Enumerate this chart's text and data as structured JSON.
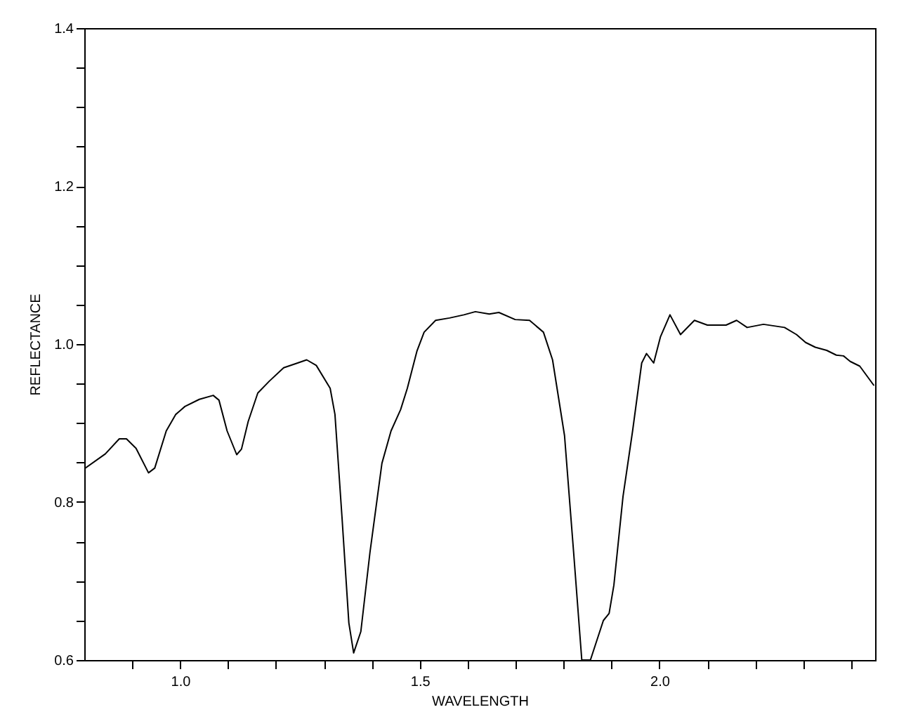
{
  "chart_data": {
    "type": "line",
    "xlabel": "WAVELENGTH",
    "ylabel": "REFLECTANCE",
    "xlim": [
      0.8,
      2.45
    ],
    "ylim": [
      0.6,
      1.4
    ],
    "xticks": [
      {
        "value": 0.9,
        "label": null
      },
      {
        "value": 1,
        "label": "1.0"
      },
      {
        "value": 1.1,
        "label": null
      },
      {
        "value": 1.2,
        "label": null
      },
      {
        "value": 1.3,
        "label": null
      },
      {
        "value": 1.4,
        "label": null
      },
      1.5,
      {
        "value": 1.6,
        "label": null
      },
      {
        "value": 1.7,
        "label": null
      },
      {
        "value": 1.8,
        "label": null
      },
      {
        "value": 1.9,
        "label": null
      },
      {
        "value": 2,
        "label": "2.0"
      },
      {
        "value": 2.1,
        "label": null
      },
      {
        "value": 2.2,
        "label": null
      },
      {
        "value": 2.3,
        "label": null
      },
      {
        "value": 2.4,
        "label": null
      }
    ],
    "yticks": [
      0.6,
      {
        "value": 0.65,
        "label": null
      },
      {
        "value": 0.7,
        "label": null
      },
      {
        "value": 0.75,
        "label": null
      },
      0.8,
      {
        "value": 0.85,
        "label": null
      },
      {
        "value": 0.9,
        "label": null
      },
      {
        "value": 0.95,
        "label": null
      },
      {
        "value": 1,
        "label": "1.0"
      },
      {
        "value": 1.05,
        "label": null
      },
      {
        "value": 1.1,
        "label": null
      },
      {
        "value": 1.15,
        "label": null
      },
      1.2,
      {
        "value": 1.25,
        "label": null
      },
      {
        "value": 1.3,
        "label": null
      },
      {
        "value": 1.35,
        "label": null
      },
      1.4
    ],
    "grid": false,
    "marker": "none",
    "line_style": "solid",
    "series": [
      {
        "color": "#000000",
        "x": [
          0.8,
          0.844,
          0.873,
          0.888,
          0.908,
          0.934,
          0.947,
          0.971,
          0.991,
          1.01,
          1.04,
          1.069,
          1.081,
          1.098,
          1.118,
          1.128,
          1.142,
          1.162,
          1.186,
          1.216,
          1.245,
          1.264,
          1.284,
          1.313,
          1.323,
          1.338,
          1.352,
          1.362,
          1.377,
          1.396,
          1.421,
          1.44,
          1.46,
          1.474,
          1.494,
          1.509,
          1.533,
          1.562,
          1.592,
          1.616,
          1.645,
          1.665,
          1.699,
          1.729,
          1.758,
          1.777,
          1.802,
          1.821,
          1.838,
          1.856,
          1.883,
          1.895,
          1.905,
          1.924,
          1.944,
          1.963,
          1.973,
          1.988,
          2.002,
          2.022,
          2.044,
          2.073,
          2.1,
          2.139,
          2.161,
          2.183,
          2.217,
          2.261,
          2.286,
          2.305,
          2.325,
          2.349,
          2.369,
          2.384,
          2.398,
          2.418,
          2.447
        ],
        "values": [
          0.842,
          0.861,
          0.88,
          0.88,
          0.868,
          0.837,
          0.843,
          0.89,
          0.911,
          0.921,
          0.93,
          0.935,
          0.929,
          0.89,
          0.86,
          0.867,
          0.902,
          0.938,
          0.953,
          0.97,
          0.976,
          0.98,
          0.973,
          0.944,
          0.911,
          0.778,
          0.647,
          0.609,
          0.636,
          0.736,
          0.849,
          0.89,
          0.917,
          0.944,
          0.991,
          1.015,
          1.03,
          1.033,
          1.037,
          1.041,
          1.038,
          1.04,
          1.031,
          1.03,
          1.015,
          0.98,
          0.884,
          0.736,
          0.6,
          0.6,
          0.65,
          0.659,
          0.695,
          0.807,
          0.89,
          0.976,
          0.988,
          0.976,
          1.009,
          1.037,
          1.012,
          1.03,
          1.024,
          1.024,
          1.03,
          1.021,
          1.025,
          1.021,
          1.012,
          1.002,
          0.996,
          0.992,
          0.986,
          0.985,
          0.978,
          0.972,
          0.948
        ]
      }
    ]
  }
}
